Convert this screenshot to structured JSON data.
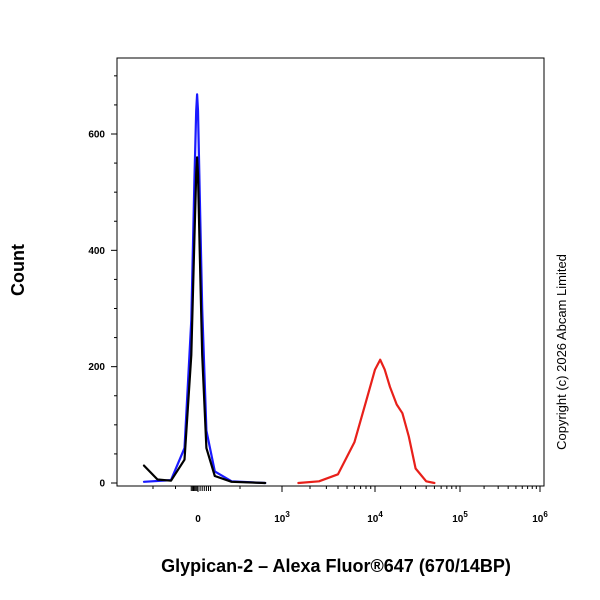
{
  "chart_data": {
    "type": "line",
    "title": "",
    "xlabel": "Glypican-2 – Alexa Fluor®647 (670/14BP)",
    "ylabel": "Count",
    "x_scale": "biexponential",
    "ylim": [
      0,
      720
    ],
    "yticks": [
      0,
      200,
      400,
      600
    ],
    "xtick_labels": [
      {
        "base": "0",
        "exp": ""
      },
      {
        "base": "10",
        "exp": "3"
      },
      {
        "base": "10",
        "exp": "4"
      },
      {
        "base": "10",
        "exp": "5"
      },
      {
        "base": "10",
        "exp": "6"
      }
    ],
    "grid": false,
    "legend": "none",
    "series": [
      {
        "color": "#1a1aff",
        "x": [
          -1200,
          -600,
          -300,
          -150,
          -80,
          -40,
          -20,
          0,
          20,
          50,
          100,
          200,
          400,
          800
        ],
        "y": [
          2,
          5,
          60,
          280,
          520,
          640,
          668,
          640,
          500,
          300,
          90,
          20,
          3,
          0
        ]
      },
      {
        "color": "#000000",
        "x": [
          -1200,
          -900,
          -600,
          -300,
          -150,
          -80,
          -40,
          -20,
          0,
          20,
          50,
          100,
          200,
          400,
          800
        ],
        "y": [
          30,
          6,
          4,
          40,
          220,
          420,
          530,
          560,
          530,
          400,
          220,
          60,
          12,
          2,
          0
        ]
      },
      {
        "color": "#e8201a",
        "x": [
          1500,
          2500,
          4000,
          6000,
          8000,
          10000,
          11500,
          13000,
          15000,
          18000,
          21000,
          25000,
          30000,
          40000,
          50000
        ],
        "y": [
          0,
          3,
          15,
          70,
          140,
          195,
          212,
          195,
          165,
          135,
          120,
          80,
          25,
          3,
          0
        ]
      }
    ]
  },
  "copyright": "Copyright (c) 2026 Abcam Limited"
}
